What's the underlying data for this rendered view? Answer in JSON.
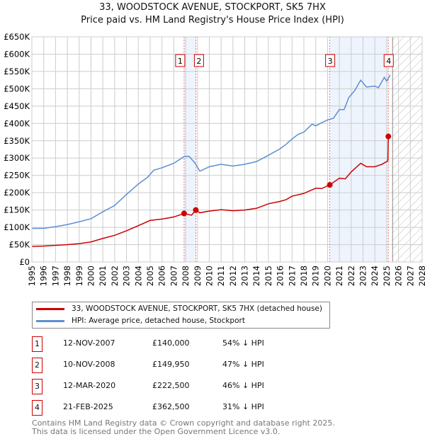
{
  "chart_data": {
    "type": "line",
    "title": "33, WOODSTOCK AVENUE, STOCKPORT, SK5 7HX",
    "subtitle": "Price paid vs. HM Land Registry's House Price Index (HPI)",
    "xlim": [
      1995,
      2028
    ],
    "ylim": [
      0,
      650000
    ],
    "y_ticks": [
      "£0",
      "£50K",
      "£100K",
      "£150K",
      "£200K",
      "£250K",
      "£300K",
      "£350K",
      "£400K",
      "£450K",
      "£500K",
      "£550K",
      "£600K",
      "£650K"
    ],
    "x_ticks": [
      "1995",
      "1996",
      "1997",
      "1998",
      "1999",
      "2000",
      "2001",
      "2002",
      "2003",
      "2004",
      "2005",
      "2006",
      "2007",
      "2008",
      "2009",
      "2010",
      "2011",
      "2012",
      "2013",
      "2014",
      "2015",
      "2016",
      "2017",
      "2018",
      "2019",
      "2020",
      "2021",
      "2022",
      "2023",
      "2024",
      "2025",
      "2026",
      "2027",
      "2028"
    ],
    "forecast_from": 2025.5,
    "series": [
      {
        "name": "33, WOODSTOCK AVENUE, STOCKPORT, SK5 7HX (detached house)",
        "color": "#cc0000",
        "x": [
          1995,
          1996,
          1997,
          1998,
          1999,
          2000,
          2001,
          2002,
          2003,
          2004,
          2005,
          2006,
          2007,
          2007.87,
          2008.5,
          2008.86,
          2009.2,
          2010,
          2011,
          2012,
          2013,
          2014,
          2015,
          2016,
          2016.5,
          2017,
          2018,
          2019,
          2019.5,
          2020.19,
          2021,
          2021.5,
          2022,
          2022.8,
          2023.3,
          2024,
          2024.6,
          2025.1,
          2025.14
        ],
        "y": [
          45000,
          46000,
          48000,
          50000,
          53000,
          58000,
          68000,
          77000,
          90000,
          105000,
          120000,
          124000,
          130000,
          140000,
          135000,
          149950,
          142000,
          147000,
          151000,
          148000,
          150000,
          155000,
          168000,
          175000,
          180000,
          190000,
          198000,
          213000,
          212000,
          222500,
          242000,
          240000,
          260000,
          285000,
          275000,
          275000,
          282000,
          292000,
          362500
        ]
      },
      {
        "name": "HPI: Average price, detached house, Stockport",
        "color": "#5b8fd4",
        "x": [
          1995,
          1996,
          1997,
          1998,
          1999,
          2000,
          2001,
          2002,
          2003,
          2004,
          2004.8,
          2005.3,
          2006,
          2007,
          2007.9,
          2008.3,
          2008.8,
          2009.2,
          2010,
          2011,
          2012,
          2013,
          2014,
          2015,
          2016,
          2016.5,
          2017,
          2017.5,
          2018,
          2018.7,
          2019,
          2019.5,
          2020,
          2020.5,
          2021,
          2021.4,
          2021.8,
          2022.3,
          2022.8,
          2023.3,
          2024,
          2024.3,
          2024.8,
          2025,
          2025.3
        ],
        "y": [
          97000,
          97000,
          102000,
          108000,
          116000,
          125000,
          145000,
          163000,
          195000,
          225000,
          245000,
          265000,
          272000,
          285000,
          305000,
          305000,
          285000,
          262000,
          275000,
          282000,
          277000,
          282000,
          290000,
          308000,
          327000,
          340000,
          355000,
          368000,
          375000,
          398000,
          393000,
          402000,
          410000,
          415000,
          440000,
          440000,
          475000,
          495000,
          525000,
          505000,
          508000,
          503000,
          533000,
          522000,
          540000
        ]
      }
    ],
    "sales": [
      {
        "label": "1",
        "x": 2007.87,
        "date": "12-NOV-2007",
        "price": "£140,000",
        "value": 140000,
        "hpi": "54% ↓ HPI"
      },
      {
        "label": "2",
        "x": 2008.86,
        "date": "10-NOV-2008",
        "price": "£149,950",
        "value": 149950,
        "hpi": "47% ↓ HPI"
      },
      {
        "label": "3",
        "x": 2020.19,
        "date": "12-MAR-2020",
        "price": "£222,500",
        "value": 222500,
        "hpi": "46% ↓ HPI"
      },
      {
        "label": "4",
        "x": 2025.14,
        "date": "21-FEB-2025",
        "price": "£362,500",
        "value": 362500,
        "hpi": "31% ↓ HPI"
      }
    ]
  },
  "footer": [
    "Contains HM Land Registry data © Crown copyright and database right 2025.",
    "This data is licensed under the Open Government Licence v3.0."
  ]
}
